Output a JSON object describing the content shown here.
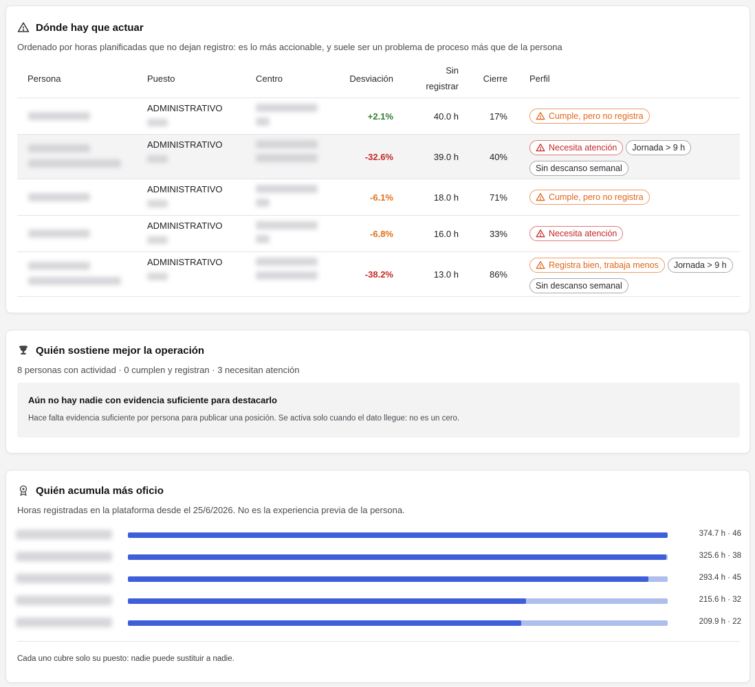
{
  "actuar": {
    "title": "Dónde hay que actuar",
    "subtitle": "Ordenado por horas planificadas que no dejan registro: es lo más accionable, y suele ser un problema de proceso más que de la persona",
    "headers": {
      "persona": "Persona",
      "puesto": "Puesto",
      "centro": "Centro",
      "desviacion": "Desviación",
      "sin_registrar_1": "Sin",
      "sin_registrar_2": "registrar",
      "cierre": "Cierre",
      "perfil": "Perfil"
    },
    "rows": [
      {
        "puesto": "ADMINISTRATIVO",
        "desviacion": "+2.1%",
        "sin_registrar": "40.0 h",
        "cierre": "17%",
        "tags": [
          {
            "label": "Cumple, pero no registra",
            "tone": "orange",
            "icon": "warning"
          }
        ]
      },
      {
        "puesto": "ADMINISTRATIVO",
        "desviacion": "-32.6%",
        "sin_registrar": "39.0 h",
        "cierre": "40%",
        "tags": [
          {
            "label": "Necesita atención",
            "tone": "red",
            "icon": "warning"
          },
          {
            "label": "Jornada > 9 h",
            "tone": "gray"
          },
          {
            "label": "Sin descanso semanal",
            "tone": "gray"
          }
        ]
      },
      {
        "puesto": "ADMINISTRATIVO",
        "desviacion": "-6.1%",
        "sin_registrar": "18.0 h",
        "cierre": "71%",
        "tags": [
          {
            "label": "Cumple, pero no registra",
            "tone": "orange",
            "icon": "warning"
          }
        ]
      },
      {
        "puesto": "ADMINISTRATIVO",
        "desviacion": "-6.8%",
        "sin_registrar": "16.0 h",
        "cierre": "33%",
        "tags": [
          {
            "label": "Necesita atención",
            "tone": "red",
            "icon": "warning"
          }
        ]
      },
      {
        "puesto": "ADMINISTRATIVO",
        "desviacion": "-38.2%",
        "sin_registrar": "13.0 h",
        "cierre": "86%",
        "tags": [
          {
            "label": "Registra bien, trabaja menos",
            "tone": "orange",
            "icon": "warning"
          },
          {
            "label": "Jornada > 9 h",
            "tone": "gray"
          },
          {
            "label": "Sin descanso semanal",
            "tone": "gray"
          }
        ]
      }
    ]
  },
  "operacion": {
    "title": "Quién sostiene mejor la operación",
    "subtitle": "8 personas con actividad · 0 cumplen y registran · 3 necesitan atención",
    "empty_title": "Aún no hay nadie con evidencia suficiente para destacarlo",
    "empty_desc": "Hace falta evidencia suficiente por persona para publicar una posición. Se activa solo cuando el dato llegue: no es un cero."
  },
  "oficio": {
    "title": "Quién acumula más oficio",
    "subtitle": "Horas registradas en la plataforma desde el 25/6/2026. No es la experiencia previa de la persona.",
    "max_hours": 374.7,
    "bars": [
      {
        "hours": 374.7,
        "label": "374.7 h · 46"
      },
      {
        "hours": 325.6,
        "label": "325.6 h · 38"
      },
      {
        "hours": 293.4,
        "label": "293.4 h · 45"
      },
      {
        "hours": 215.6,
        "label": "215.6 h · 32"
      },
      {
        "hours": 209.9,
        "label": "209.9 h · 22"
      }
    ],
    "footnote": "Cada uno cubre solo su puesto: nadie puede sustituir a nadie."
  },
  "colors": {
    "positive": "#2e7d32",
    "negative": "#c62828",
    "warning": "#e0701a",
    "bar_fill": "#3f5fd9",
    "bar_track": "#aebfee"
  }
}
